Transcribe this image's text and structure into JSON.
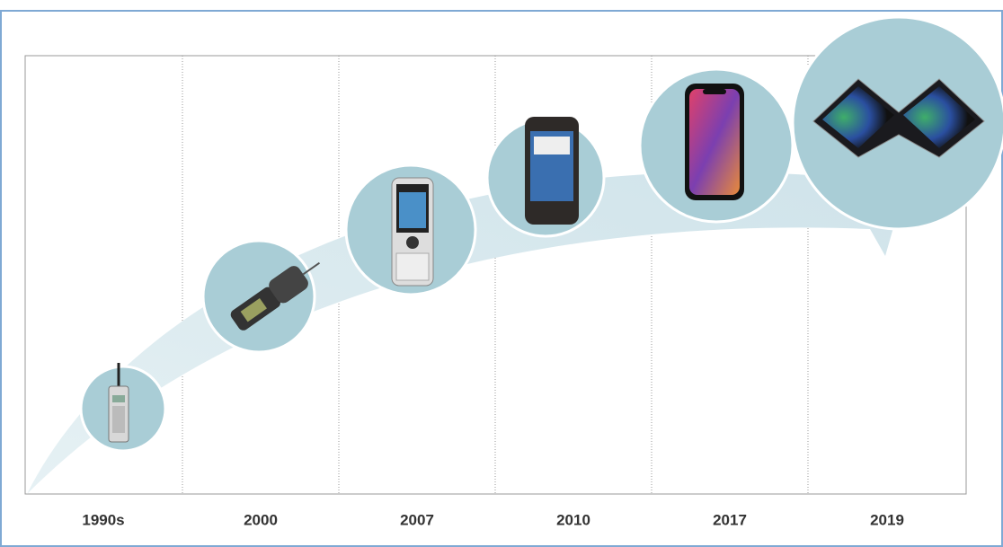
{
  "timeline": {
    "labels": [
      "1990s",
      "2000",
      "2007",
      "2010",
      "2017",
      "2019"
    ]
  }
}
